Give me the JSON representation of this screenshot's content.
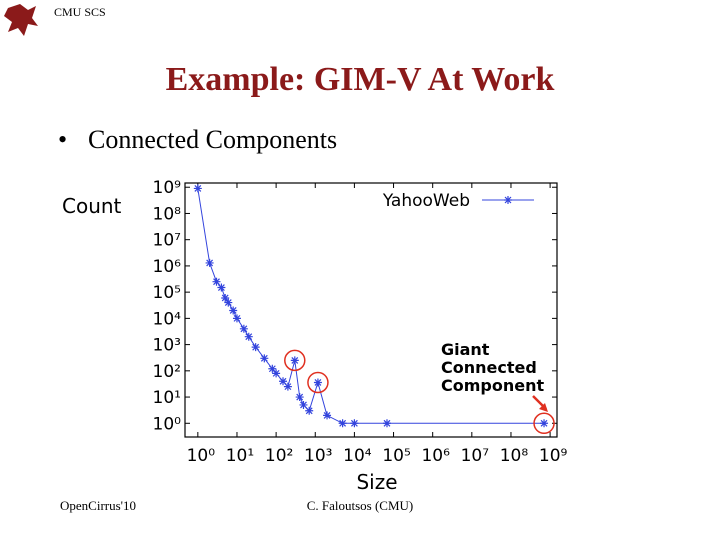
{
  "header": "CMU SCS",
  "slide_title": "Example: GIM-V At Work",
  "bullet": "Connected Components",
  "footer_left": "OpenCirrus'10",
  "footer_center": "C. Faloutsos (CMU)",
  "chart_data": {
    "type": "line",
    "x_label": "Size",
    "y_label": "Count",
    "annotation": "Giant Connected Component",
    "xlog": true,
    "ylog": true,
    "legend": "upper right",
    "x": [
      1,
      2,
      3,
      4,
      5,
      6,
      8,
      10,
      15,
      20,
      30,
      50,
      80,
      100,
      150,
      200,
      300,
      400,
      500,
      700,
      1170,
      2000,
      5000,
      10000,
      68000,
      700000000
    ],
    "series": [
      {
        "name": "YahooWeb",
        "color": "#3344dd",
        "values": [
          900000000,
          1300000,
          250000,
          150000,
          60000,
          40000,
          20000,
          10000,
          4000,
          2000,
          800,
          300,
          120,
          80,
          40,
          25,
          250,
          10,
          5,
          3,
          36,
          2,
          1,
          1,
          1,
          1
        ]
      }
    ],
    "xlim": [
      0.47,
      1500000000
    ],
    "ylim": [
      0.3,
      1450000000
    ],
    "xticks": [
      {
        "value": 1,
        "label": "10⁰"
      },
      {
        "value": 10,
        "label": "10¹"
      },
      {
        "value": 100,
        "label": "10²"
      },
      {
        "value": 1000,
        "label": "10³"
      },
      {
        "value": 10000,
        "label": "10⁴"
      },
      {
        "value": 100000,
        "label": "10⁵"
      },
      {
        "value": 1000000,
        "label": "10⁶"
      },
      {
        "value": 10000000,
        "label": "10⁷"
      },
      {
        "value": 100000000,
        "label": "10⁸"
      },
      {
        "value": 1000000000,
        "label": "10⁹"
      }
    ],
    "yticks": [
      {
        "value": 1,
        "label": "10⁰"
      },
      {
        "value": 10,
        "label": "10¹"
      },
      {
        "value": 100,
        "label": "10²"
      },
      {
        "value": 1000,
        "label": "10³"
      },
      {
        "value": 10000,
        "label": "10⁴"
      },
      {
        "value": 100000,
        "label": "10⁵"
      },
      {
        "value": 1000000,
        "label": "10⁶"
      },
      {
        "value": 10000000,
        "label": "10⁷"
      },
      {
        "value": 100000000,
        "label": "10⁸"
      },
      {
        "value": 1000000000,
        "label": "10⁹"
      }
    ]
  }
}
